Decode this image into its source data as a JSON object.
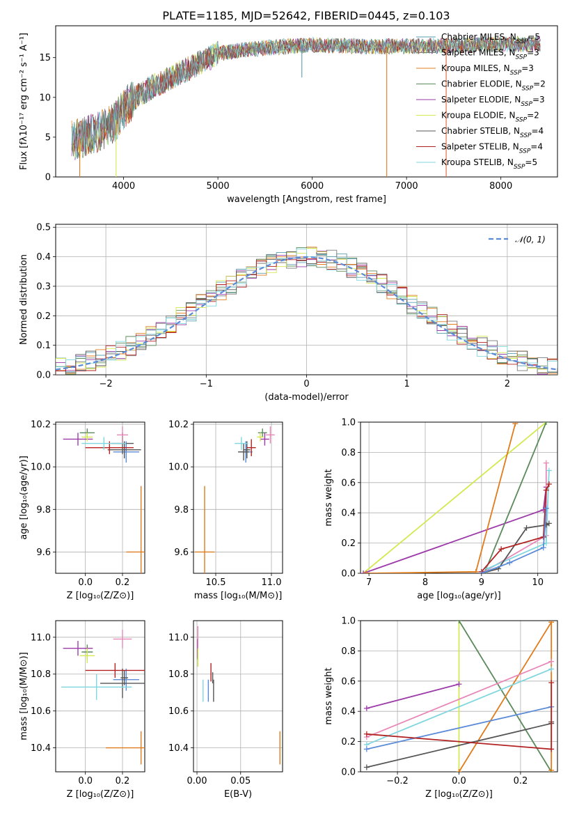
{
  "figure_title": "PLATE=1185, MJD=52642, FIBERID=0445, z=0.103",
  "models": [
    {
      "name": "Chabrier MILES",
      "nssp": "5",
      "color": "#5a9fb0"
    },
    {
      "name": "Salpeter MILES",
      "nssp": "3",
      "color": "#7a7a7a"
    },
    {
      "name": "Kroupa MILES",
      "nssp": "3",
      "color": "#e07b1c"
    },
    {
      "name": "Chabrier ELODIE",
      "nssp": "2",
      "color": "#5a8a5a"
    },
    {
      "name": "Salpeter ELODIE",
      "nssp": "3",
      "color": "#9b3aa8"
    },
    {
      "name": "Kroupa ELODIE",
      "nssp": "2",
      "color": "#d4e850"
    },
    {
      "name": "Chabrier STELIB",
      "nssp": "4",
      "color": "#555555"
    },
    {
      "name": "Salpeter STELIB",
      "nssp": "4",
      "color": "#b22222"
    },
    {
      "name": "Kroupa STELIB",
      "nssp": "5",
      "color": "#7fd6de"
    }
  ],
  "chart_data": [
    {
      "id": "spectrum",
      "type": "line",
      "xlabel": "wavelength [Angstrom, rest frame]",
      "ylabel": "Flux [fλ10⁻¹⁷ erg cm⁻² s⁻¹ A⁻¹]",
      "xlim": [
        3280,
        8600
      ],
      "ylim": [
        0,
        19
      ],
      "xticks": [
        4000,
        5000,
        6000,
        7000,
        8000
      ],
      "yticks": [
        0,
        5,
        10,
        15
      ],
      "continuum": {
        "x": [
          3450,
          3700,
          3900,
          4000,
          4100,
          4300,
          4500,
          4800,
          5000,
          5300,
          5600,
          6000,
          6300,
          6600,
          7000,
          7400,
          7800,
          8200,
          8400
        ],
        "y": [
          4.5,
          5.5,
          6.8,
          8.5,
          9.8,
          11.3,
          12.5,
          14.3,
          15.5,
          16.0,
          16.3,
          16.6,
          16.5,
          16.4,
          16.4,
          16.5,
          16.6,
          16.7,
          16.7
        ]
      },
      "spikes": [
        {
          "x": 3535,
          "y": 0
        },
        {
          "x": 3920,
          "y": 0
        },
        {
          "x": 5890,
          "y": 12.5
        },
        {
          "x": 6790,
          "y": 0
        },
        {
          "x": 7420,
          "y": 0
        }
      ],
      "grid": false
    },
    {
      "id": "residuals",
      "type": "line",
      "xlabel": "(data-model)/error",
      "ylabel": "Normed distribution",
      "xlim": [
        -2.5,
        2.5
      ],
      "ylim": [
        0,
        0.51
      ],
      "xticks": [
        -2,
        -1,
        0,
        1,
        2
      ],
      "xtick_labels": [
        "−2",
        "−1",
        "0",
        "1",
        "2"
      ],
      "yticks": [
        0.0,
        0.1,
        0.2,
        0.3,
        0.4,
        0.5
      ],
      "ytick_labels": [
        "0.0",
        "0.1",
        "0.2",
        "0.3",
        "0.4",
        "0.5"
      ],
      "legend": "𝒩(0, 1)",
      "legend_position": "top-right",
      "gaussian": {
        "mu": 0,
        "sigma": 1,
        "color": "#5b8bd8"
      },
      "bin_width": 0.1,
      "grid": true
    },
    {
      "id": "age-vs-Z",
      "type": "scatter",
      "xlabel": "Z [log₁₀(Z/Z⊙)]",
      "ylabel": "age  [log₁₀(age/yr)]",
      "xlim": [
        -0.16,
        0.32
      ],
      "ylim": [
        9.5,
        10.21
      ],
      "xticks": [
        0.0,
        0.2
      ],
      "xtick_labels": [
        "0.0",
        "0.2"
      ],
      "yticks": [
        9.6,
        9.8,
        10.0,
        10.2
      ],
      "ytick_labels": [
        "9.6",
        "9.8",
        "10.0",
        "10.2"
      ],
      "points": [
        {
          "x": 0.22,
          "y": 10.07,
          "xerr": 0.07,
          "yerr": 0.05,
          "color": "#5b8bd8"
        },
        {
          "x": 0.2,
          "y": 10.11,
          "xerr": 0.06,
          "yerr": 0.05,
          "color": "#555555"
        },
        {
          "x": 0.3,
          "y": 9.6,
          "xerr": 0.08,
          "yerr": 0.31,
          "color": "#e07b1c"
        },
        {
          "x": 0.01,
          "y": 10.16,
          "xerr": 0.04,
          "yerr": 0.02,
          "color": "#5a8a5a"
        },
        {
          "x": -0.04,
          "y": 10.13,
          "xerr": 0.08,
          "yerr": 0.03,
          "color": "#9b3aa8"
        },
        {
          "x": 0.01,
          "y": 10.14,
          "xerr": 0.03,
          "yerr": 0.02,
          "color": "#d4e850"
        },
        {
          "x": 0.21,
          "y": 10.08,
          "xerr": 0.09,
          "yerr": 0.04,
          "color": "#555555"
        },
        {
          "x": 0.13,
          "y": 10.09,
          "xerr": 0.13,
          "yerr": 0.03,
          "color": "#b22222"
        },
        {
          "x": 0.2,
          "y": 10.15,
          "xerr": 0.03,
          "yerr": 0.04,
          "color": "#e888b8"
        },
        {
          "x": 0.1,
          "y": 10.11,
          "xerr": 0.12,
          "yerr": 0.03,
          "color": "#7fd6de"
        }
      ],
      "grid": true
    },
    {
      "id": "age-vs-mass",
      "type": "scatter",
      "xlabel": "mass [log₁₀(M/M⊙)]",
      "ylabel": "",
      "xlim": [
        10.3,
        11.1
      ],
      "ylim": [
        9.5,
        10.21
      ],
      "xticks": [
        10.5,
        11.0
      ],
      "xtick_labels": [
        "10.5",
        "11.0"
      ],
      "yticks": [
        9.6,
        9.8,
        10.0,
        10.2
      ],
      "ytick_labels": [
        "9.6",
        "9.8",
        "10.0",
        "10.2"
      ],
      "points": [
        {
          "x": 10.77,
          "y": 10.07,
          "xerr": 0.06,
          "yerr": 0.05,
          "color": "#5b8bd8"
        },
        {
          "x": 10.75,
          "y": 10.07,
          "xerr": 0.05,
          "yerr": 0.04,
          "color": "#555555"
        },
        {
          "x": 10.4,
          "y": 9.6,
          "xerr": 0.09,
          "yerr": 0.31,
          "color": "#e07b1c"
        },
        {
          "x": 10.92,
          "y": 10.16,
          "xerr": 0.04,
          "yerr": 0.02,
          "color": "#5a8a5a"
        },
        {
          "x": 10.94,
          "y": 10.13,
          "xerr": 0.04,
          "yerr": 0.03,
          "color": "#9b3aa8"
        },
        {
          "x": 10.9,
          "y": 10.14,
          "xerr": 0.03,
          "yerr": 0.02,
          "color": "#d4e850"
        },
        {
          "x": 10.78,
          "y": 10.08,
          "xerr": 0.03,
          "yerr": 0.04,
          "color": "#555555"
        },
        {
          "x": 10.82,
          "y": 10.09,
          "xerr": 0.04,
          "yerr": 0.04,
          "color": "#b22222"
        },
        {
          "x": 10.99,
          "y": 10.15,
          "xerr": 0.04,
          "yerr": 0.04,
          "color": "#e888b8"
        },
        {
          "x": 10.73,
          "y": 10.11,
          "xerr": 0.06,
          "yerr": 0.03,
          "color": "#7fd6de"
        }
      ],
      "grid": true
    },
    {
      "id": "massweight-vs-age",
      "type": "line",
      "xlabel": "age  [log₁₀(age/yr)]",
      "ylabel": "mass weight",
      "xlim": [
        6.85,
        10.35
      ],
      "ylim": [
        0.0,
        1.0
      ],
      "xticks": [
        7,
        8,
        9,
        10
      ],
      "xtick_labels": [
        "7",
        "8",
        "9",
        "10"
      ],
      "yticks": [
        0.0,
        0.2,
        0.4,
        0.6,
        0.8,
        1.0
      ],
      "ytick_labels": [
        "0.0",
        "0.2",
        "0.4",
        "0.6",
        "0.8",
        "1.0"
      ],
      "series": [
        {
          "color": "#d4e850",
          "x": [
            6.9,
            10.15
          ],
          "y": [
            0.0,
            1.0
          ]
        },
        {
          "color": "#9b3aa8",
          "x": [
            6.9,
            10.1,
            10.15
          ],
          "y": [
            0.0,
            0.42,
            0.57
          ]
        },
        {
          "color": "#e07b1c",
          "x": [
            6.95,
            8.9,
            9.6
          ],
          "y": [
            0.0,
            0.01,
            0.99
          ]
        },
        {
          "color": "#5a8a5a",
          "x": [
            9.05,
            10.15
          ],
          "y": [
            0.0,
            1.0
          ]
        },
        {
          "color": "#e888b8",
          "x": [
            9.0,
            10.15,
            10.15
          ],
          "y": [
            0.0,
            0.25,
            0.73
          ]
        },
        {
          "color": "#7fd6de",
          "x": [
            9.1,
            10.15,
            10.2
          ],
          "y": [
            0.03,
            0.2,
            0.68
          ]
        },
        {
          "color": "#555555",
          "x": [
            9.0,
            9.3,
            9.8,
            10.15,
            10.2
          ],
          "y": [
            0.0,
            0.03,
            0.3,
            0.32,
            0.33
          ]
        },
        {
          "color": "#b22222",
          "x": [
            9.0,
            9.35,
            10.1,
            10.15,
            10.2
          ],
          "y": [
            0.01,
            0.16,
            0.24,
            0.55,
            0.59
          ]
        },
        {
          "color": "#5b8bd8",
          "x": [
            9.0,
            9.5,
            10.1,
            10.15
          ],
          "y": [
            0.0,
            0.07,
            0.17,
            0.43
          ]
        }
      ],
      "grid": true
    },
    {
      "id": "mass-vs-Z",
      "type": "scatter",
      "xlabel": "Z [log₁₀(Z/Z⊙)]",
      "ylabel": "mass [log₁₀(M/M⊙)]",
      "xlim": [
        -0.16,
        0.32
      ],
      "ylim": [
        10.27,
        11.09
      ],
      "xticks": [
        0.0,
        0.2
      ],
      "xtick_labels": [
        "0.0",
        "0.2"
      ],
      "yticks": [
        10.4,
        10.6,
        10.8,
        11.0
      ],
      "ytick_labels": [
        "10.4",
        "10.6",
        "10.8",
        "11.0"
      ],
      "points": [
        {
          "x": 0.22,
          "y": 10.77,
          "xerr": 0.07,
          "yerr": 0.06,
          "color": "#5b8bd8"
        },
        {
          "x": 0.2,
          "y": 10.75,
          "xerr": 0.12,
          "yerr": 0.08,
          "color": "#555555"
        },
        {
          "x": 0.3,
          "y": 10.4,
          "xerr": 0.19,
          "yerr": 0.09,
          "color": "#e07b1c"
        },
        {
          "x": 0.01,
          "y": 10.92,
          "xerr": 0.03,
          "yerr": 0.04,
          "color": "#5a8a5a"
        },
        {
          "x": -0.04,
          "y": 10.94,
          "xerr": 0.08,
          "yerr": 0.04,
          "color": "#9b3aa8"
        },
        {
          "x": 0.01,
          "y": 10.9,
          "xerr": 0.04,
          "yerr": 0.04,
          "color": "#d4e850"
        },
        {
          "x": 0.21,
          "y": 10.78,
          "xerr": 0.02,
          "yerr": 0.04,
          "color": "#555555"
        },
        {
          "x": 0.16,
          "y": 10.82,
          "xerr": 0.16,
          "yerr": 0.04,
          "color": "#b22222"
        },
        {
          "x": 0.2,
          "y": 10.99,
          "xerr": 0.05,
          "yerr": 0.05,
          "color": "#e888b8"
        },
        {
          "x": 0.06,
          "y": 10.73,
          "xerr": 0.19,
          "yerr": 0.07,
          "color": "#7fd6de"
        }
      ],
      "grid": true
    },
    {
      "id": "mass-vs-ebv",
      "type": "scatter",
      "xlabel": "E(B-V)",
      "ylabel": "",
      "xlim": [
        -0.004,
        0.098
      ],
      "ylim": [
        10.27,
        11.09
      ],
      "xticks": [
        0.0,
        0.05
      ],
      "xtick_labels": [
        "0.00",
        "0.05"
      ],
      "yticks": [
        10.4,
        10.6,
        10.8,
        11.0
      ],
      "ytick_labels": [
        "10.4",
        "10.6",
        "10.8",
        "11.0"
      ],
      "points": [
        {
          "x": 0.013,
          "y": 10.71,
          "xerr": 0,
          "yerr": 0.06,
          "color": "#5b8bd8"
        },
        {
          "x": 0.019,
          "y": 10.71,
          "xerr": 0,
          "yerr": 0.06,
          "color": "#555555"
        },
        {
          "x": 0.095,
          "y": 10.4,
          "xerr": 0,
          "yerr": 0.09,
          "color": "#e07b1c"
        },
        {
          "x": 0.0005,
          "y": 10.92,
          "xerr": 0,
          "yerr": 0.04,
          "color": "#5a8a5a"
        },
        {
          "x": 0.0005,
          "y": 10.94,
          "xerr": 0,
          "yerr": 0.05,
          "color": "#9b3aa8"
        },
        {
          "x": 0.001,
          "y": 10.89,
          "xerr": 0,
          "yerr": 0.05,
          "color": "#d4e850"
        },
        {
          "x": 0.018,
          "y": 10.78,
          "xerr": 0,
          "yerr": 0.03,
          "color": "#555555"
        },
        {
          "x": 0.016,
          "y": 10.81,
          "xerr": 0,
          "yerr": 0.05,
          "color": "#b22222"
        },
        {
          "x": 0.001,
          "y": 11.0,
          "xerr": 0,
          "yerr": 0.06,
          "color": "#e888b8"
        },
        {
          "x": 0.007,
          "y": 10.71,
          "xerr": 0,
          "yerr": 0.06,
          "color": "#7fd6de"
        }
      ],
      "grid": true
    },
    {
      "id": "massweight-vs-Z",
      "type": "line",
      "xlabel": "Z [log₁₀(Z/Z⊙)]",
      "ylabel": "mass weight",
      "xlim": [
        -0.32,
        0.32
      ],
      "ylim": [
        0.0,
        1.0
      ],
      "xticks": [
        -0.2,
        0.0,
        0.2
      ],
      "xtick_labels": [
        "−0.2",
        "0.0",
        "0.2"
      ],
      "yticks": [
        0.0,
        0.2,
        0.4,
        0.6,
        0.8,
        1.0
      ],
      "ytick_labels": [
        "0.0",
        "0.2",
        "0.4",
        "0.6",
        "0.8",
        "1.0"
      ],
      "series": [
        {
          "color": "#d4e850",
          "x": [
            0.0,
            0.0
          ],
          "y": [
            0.0,
            1.0
          ]
        },
        {
          "color": "#5a8a5a",
          "x": [
            0.0,
            0.3
          ],
          "y": [
            1.0,
            0.0
          ]
        },
        {
          "color": "#e07b1c",
          "x": [
            0.0,
            0.3,
            0.3
          ],
          "y": [
            0.0,
            0.99,
            0.01
          ]
        },
        {
          "color": "#9b3aa8",
          "x": [
            -0.3,
            0.0
          ],
          "y": [
            0.42,
            0.58
          ]
        },
        {
          "color": "#e888b8",
          "x": [
            -0.3,
            0.3
          ],
          "y": [
            0.23,
            0.73
          ]
        },
        {
          "color": "#7fd6de",
          "x": [
            -0.3,
            0.3
          ],
          "y": [
            0.18,
            0.68
          ]
        },
        {
          "color": "#5b8bd8",
          "x": [
            -0.3,
            0.3
          ],
          "y": [
            0.15,
            0.43
          ]
        },
        {
          "color": "#555555",
          "x": [
            -0.3,
            0.3,
            0.3
          ],
          "y": [
            0.03,
            0.32,
            0.33
          ]
        },
        {
          "color": "#b22222",
          "x": [
            -0.3,
            0.3,
            0.3
          ],
          "y": [
            0.25,
            0.15,
            0.59
          ]
        }
      ],
      "grid": true
    }
  ]
}
